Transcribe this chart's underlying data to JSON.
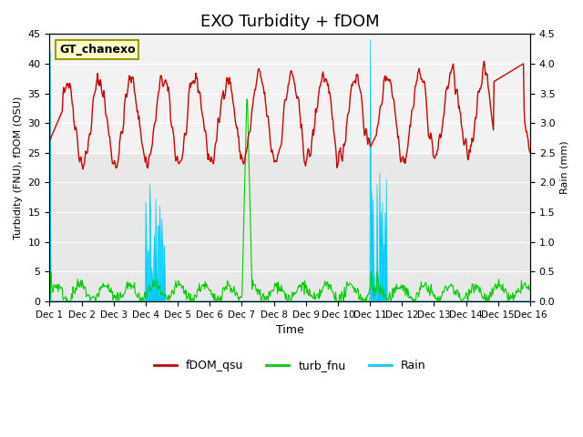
{
  "title": "EXO Turbidity + fDOM",
  "ylabel_left": "Turbidity (FNU), fDOM (QSU)",
  "ylabel_right": "Rain (mm)",
  "xlabel": "Time",
  "ylim_left": [
    0,
    45
  ],
  "ylim_right": [
    0,
    4.5
  ],
  "xlim": [
    0,
    15
  ],
  "xtick_labels": [
    "Dec 1",
    "Dec 2",
    "Dec 3",
    "Dec 4",
    "Dec 5",
    "Dec 6",
    "Dec 7",
    "Dec 8",
    "Dec 9",
    "Dec 10",
    "Dec 11",
    "Dec 12",
    "Dec 13",
    "Dec 14",
    "Dec 15",
    "Dec 16"
  ],
  "ytick_left": [
    0,
    5,
    10,
    15,
    20,
    25,
    30,
    35,
    40,
    45
  ],
  "ytick_right": [
    0.0,
    0.5,
    1.0,
    1.5,
    2.0,
    2.5,
    3.0,
    3.5,
    4.0,
    4.5
  ],
  "annotation_text": "GT_chanexo",
  "fdom_color": "#cc0000",
  "turb_color": "#00cc00",
  "rain_color": "#00ccff",
  "bg_color": "#e8e8e8",
  "shaded_color": "#d0d0d0",
  "legend_entries": [
    "fDOM_qsu",
    "turb_fnu",
    "Rain"
  ],
  "title_fontsize": 13
}
